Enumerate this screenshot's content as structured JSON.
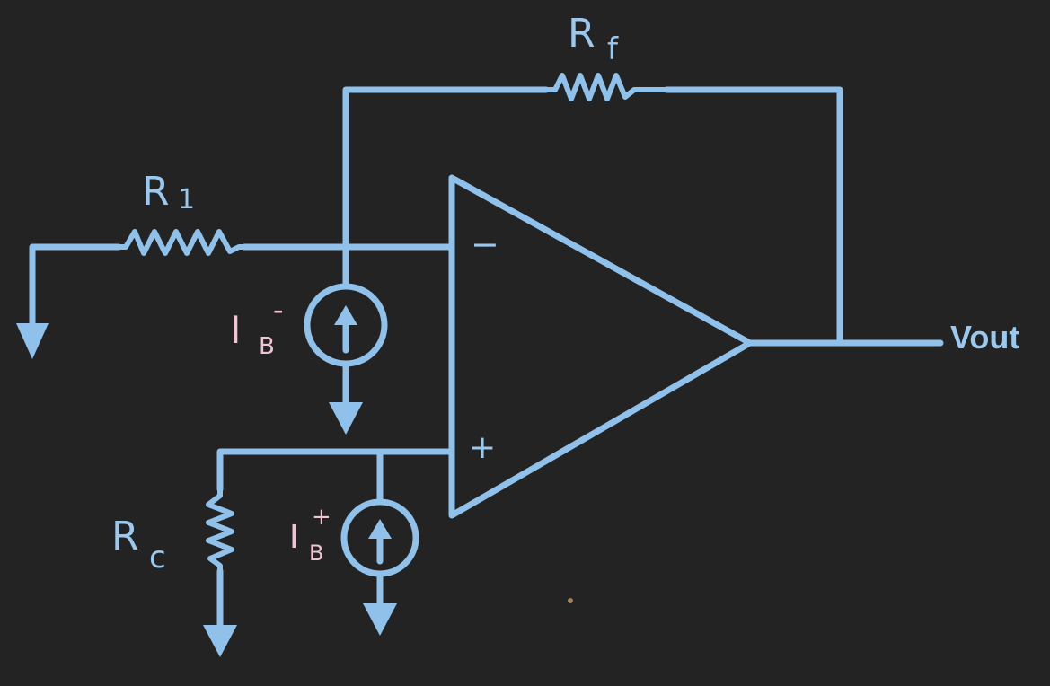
{
  "diagram": {
    "type": "op-amp circuit",
    "labels": {
      "rf_main": "R",
      "rf_sub": "f",
      "r1_main": "R",
      "r1_sub": "1",
      "rc_main": "R",
      "rc_sub": "c",
      "ib_minus_main": "I",
      "ib_minus_sub": "B",
      "ib_minus_sign": "-",
      "ib_plus_main": "I",
      "ib_plus_sub": "B",
      "ib_plus_sign": "+",
      "inverting_sign": "−",
      "noninverting_sign": "+",
      "output": "Vout"
    },
    "colors": {
      "background": "#232323",
      "wire": "#8fc1ea",
      "bias_label": "#f0c3d6"
    }
  }
}
